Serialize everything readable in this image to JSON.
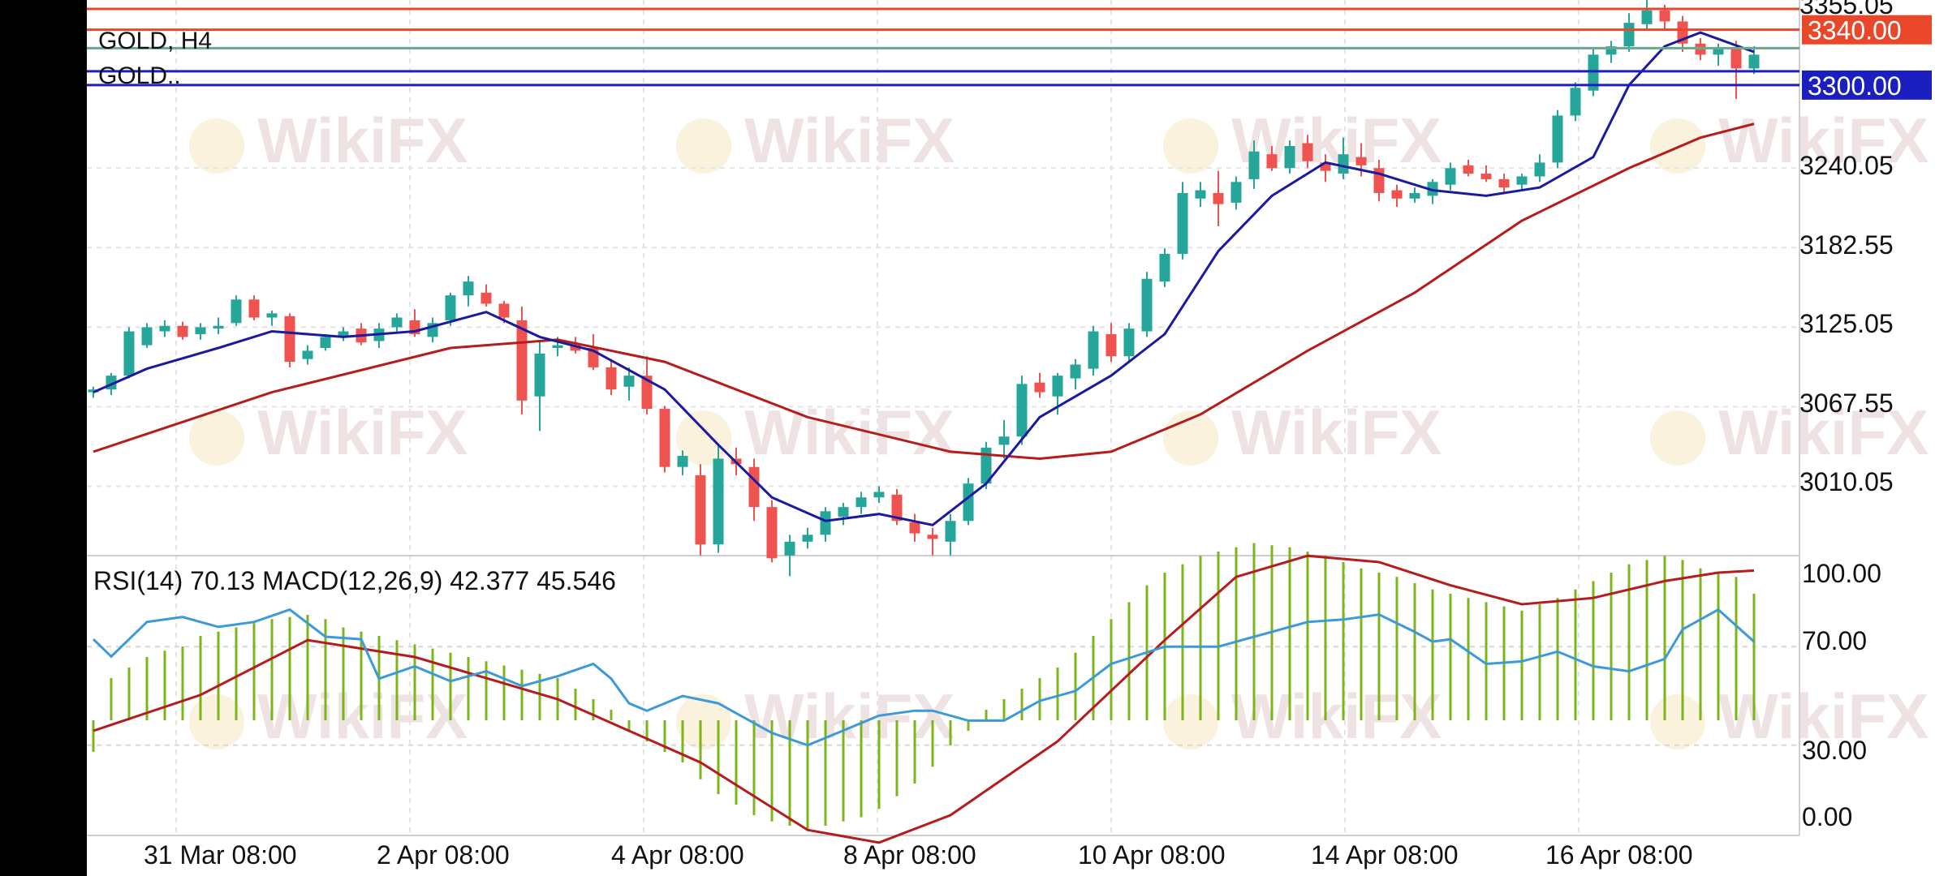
{
  "main_panel": {
    "symbol_label": "GOLD, H4",
    "overlay_label": "GOLD..",
    "price_ticks": [
      "3355.05",
      "3240.05",
      "3182.55",
      "3125.05",
      "3067.55",
      "3010.05"
    ],
    "watermark": "WikiFX"
  },
  "hlines": [
    {
      "value": 3340.0,
      "label": "3340.00",
      "color": "#e8472a",
      "badge": true
    },
    {
      "value": 3300.0,
      "label": "3300.00",
      "color": "#1c1fbf",
      "badge": true
    },
    {
      "value": 3310.0,
      "label": "3310.00",
      "color": "#1c1fbf",
      "badge": false
    },
    {
      "value": 3326.71,
      "label": "3326.71",
      "color": "#6aa88a",
      "badge": false
    },
    {
      "value": 3355.05,
      "label": "",
      "color": "#e8472a",
      "badge": false
    }
  ],
  "indicator_panel": {
    "label": "RSI(14) 70.13 MACD(12,26,9) 42.377 45.546",
    "ticks": [
      "100.00",
      "70.00",
      "30.00",
      "0.00"
    ]
  },
  "x_axis": {
    "labels": [
      "31 Mar 08:00",
      "2 Apr 08:00",
      "4 Apr 08:00",
      "8 Apr 08:00",
      "10 Apr 08:00",
      "14 Apr 08:00",
      "16 Apr 08:00"
    ]
  },
  "colors": {
    "bull": "#26a69a",
    "bear": "#ef5350",
    "ma_fast": "#1a1aa0",
    "ma_slow": "#b71c1c",
    "rsi": "#3d9ad9",
    "macd_hist": "#7cb518",
    "macd_signal": "#b71c1c"
  },
  "chart_data": {
    "type": "candlestick",
    "symbol": "GOLD",
    "timeframe": "H4",
    "y_range": [
      2955,
      3360
    ],
    "candles_ohlc": [
      [
        3078,
        3082,
        3074,
        3080
      ],
      [
        3080,
        3092,
        3076,
        3090
      ],
      [
        3090,
        3125,
        3088,
        3122
      ],
      [
        3112,
        3128,
        3110,
        3125
      ],
      [
        3122,
        3130,
        3118,
        3126
      ],
      [
        3126,
        3129,
        3116,
        3118
      ],
      [
        3120,
        3128,
        3116,
        3125
      ],
      [
        3124,
        3132,
        3120,
        3126
      ],
      [
        3128,
        3148,
        3126,
        3145
      ],
      [
        3145,
        3148,
        3130,
        3132
      ],
      [
        3132,
        3137,
        3126,
        3135
      ],
      [
        3133,
        3135,
        3096,
        3100
      ],
      [
        3102,
        3112,
        3098,
        3108
      ],
      [
        3110,
        3120,
        3108,
        3118
      ],
      [
        3118,
        3125,
        3115,
        3122
      ],
      [
        3124,
        3128,
        3112,
        3114
      ],
      [
        3115,
        3128,
        3110,
        3124
      ],
      [
        3125,
        3135,
        3122,
        3132
      ],
      [
        3130,
        3138,
        3118,
        3120
      ],
      [
        3118,
        3132,
        3114,
        3128
      ],
      [
        3130,
        3150,
        3126,
        3148
      ],
      [
        3148,
        3162,
        3140,
        3158
      ],
      [
        3150,
        3156,
        3140,
        3142
      ],
      [
        3142,
        3144,
        3128,
        3132
      ],
      [
        3130,
        3140,
        3062,
        3072
      ],
      [
        3075,
        3115,
        3050,
        3106
      ],
      [
        3110,
        3118,
        3104,
        3112
      ],
      [
        3112,
        3118,
        3106,
        3108
      ],
      [
        3110,
        3120,
        3094,
        3096
      ],
      [
        3096,
        3102,
        3076,
        3080
      ],
      [
        3082,
        3096,
        3072,
        3090
      ],
      [
        3090,
        3104,
        3062,
        3066
      ],
      [
        3066,
        3068,
        3020,
        3024
      ],
      [
        3024,
        3036,
        3018,
        3032
      ],
      [
        3018,
        3026,
        2960,
        2968
      ],
      [
        2968,
        3040,
        2962,
        3030
      ],
      [
        3030,
        3038,
        3018,
        3026
      ],
      [
        3024,
        3030,
        2985,
        2995
      ],
      [
        2995,
        3000,
        2955,
        2958
      ],
      [
        2960,
        2975,
        2945,
        2970
      ],
      [
        2970,
        2980,
        2965,
        2975
      ],
      [
        2975,
        2995,
        2970,
        2992
      ],
      [
        2988,
        2998,
        2982,
        2995
      ],
      [
        2995,
        3006,
        2990,
        3002
      ],
      [
        3002,
        3010,
        2998,
        3006
      ],
      [
        3004,
        3008,
        2982,
        2985
      ],
      [
        2984,
        2990,
        2970,
        2976
      ],
      [
        2975,
        2980,
        2960,
        2972
      ],
      [
        2970,
        2990,
        2960,
        2985
      ],
      [
        2985,
        3016,
        2982,
        3012
      ],
      [
        3012,
        3042,
        3008,
        3038
      ],
      [
        3040,
        3058,
        3030,
        3046
      ],
      [
        3046,
        3090,
        3040,
        3084
      ],
      [
        3085,
        3092,
        3074,
        3078
      ],
      [
        3075,
        3092,
        3062,
        3090
      ],
      [
        3088,
        3102,
        3080,
        3098
      ],
      [
        3095,
        3126,
        3090,
        3122
      ],
      [
        3120,
        3128,
        3100,
        3104
      ],
      [
        3104,
        3128,
        3100,
        3124
      ],
      [
        3122,
        3165,
        3118,
        3160
      ],
      [
        3158,
        3182,
        3154,
        3178
      ],
      [
        3178,
        3230,
        3174,
        3222
      ],
      [
        3218,
        3230,
        3212,
        3224
      ],
      [
        3222,
        3238,
        3198,
        3214
      ],
      [
        3215,
        3234,
        3210,
        3230
      ],
      [
        3232,
        3260,
        3225,
        3252
      ],
      [
        3250,
        3256,
        3238,
        3240
      ],
      [
        3240,
        3260,
        3236,
        3256
      ],
      [
        3258,
        3264,
        3240,
        3245
      ],
      [
        3244,
        3250,
        3230,
        3238
      ],
      [
        3236,
        3262,
        3232,
        3250
      ],
      [
        3248,
        3258,
        3234,
        3242
      ],
      [
        3240,
        3246,
        3216,
        3222
      ],
      [
        3224,
        3228,
        3212,
        3218
      ],
      [
        3218,
        3226,
        3215,
        3222
      ],
      [
        3220,
        3232,
        3214,
        3230
      ],
      [
        3228,
        3244,
        3224,
        3240
      ],
      [
        3242,
        3246,
        3234,
        3236
      ],
      [
        3236,
        3242,
        3230,
        3232
      ],
      [
        3232,
        3236,
        3222,
        3226
      ],
      [
        3228,
        3236,
        3224,
        3234
      ],
      [
        3234,
        3250,
        3230,
        3244
      ],
      [
        3244,
        3282,
        3240,
        3278
      ],
      [
        3278,
        3302,
        3274,
        3298
      ],
      [
        3296,
        3326,
        3292,
        3322
      ],
      [
        3322,
        3332,
        3316,
        3328
      ],
      [
        3328,
        3352,
        3324,
        3345
      ],
      [
        3344,
        3362,
        3340,
        3354
      ],
      [
        3354,
        3358,
        3340,
        3346
      ],
      [
        3346,
        3350,
        3324,
        3330
      ],
      [
        3330,
        3334,
        3318,
        3322
      ],
      [
        3322,
        3330,
        3314,
        3326
      ],
      [
        3326,
        3332,
        3290,
        3312
      ],
      [
        3312,
        3328,
        3308,
        3322
      ]
    ],
    "ma_fast": [
      [
        0,
        3078
      ],
      [
        3,
        3095
      ],
      [
        7,
        3110
      ],
      [
        10,
        3122
      ],
      [
        14,
        3118
      ],
      [
        18,
        3122
      ],
      [
        22,
        3136
      ],
      [
        25,
        3118
      ],
      [
        28,
        3108
      ],
      [
        32,
        3080
      ],
      [
        35,
        3040
      ],
      [
        38,
        3002
      ],
      [
        41,
        2985
      ],
      [
        44,
        2990
      ],
      [
        47,
        2982
      ],
      [
        50,
        3012
      ],
      [
        53,
        3060
      ],
      [
        57,
        3090
      ],
      [
        60,
        3120
      ],
      [
        63,
        3180
      ],
      [
        66,
        3220
      ],
      [
        69,
        3244
      ],
      [
        72,
        3236
      ],
      [
        75,
        3224
      ],
      [
        78,
        3220
      ],
      [
        81,
        3226
      ],
      [
        84,
        3248
      ],
      [
        86,
        3300
      ],
      [
        88,
        3328
      ],
      [
        90,
        3338
      ],
      [
        93,
        3324
      ]
    ],
    "ma_slow": [
      [
        0,
        3035
      ],
      [
        10,
        3078
      ],
      [
        20,
        3110
      ],
      [
        26,
        3116
      ],
      [
        32,
        3100
      ],
      [
        40,
        3060
      ],
      [
        48,
        3035
      ],
      [
        53,
        3030
      ],
      [
        57,
        3035
      ],
      [
        62,
        3062
      ],
      [
        68,
        3108
      ],
      [
        74,
        3150
      ],
      [
        80,
        3202
      ],
      [
        86,
        3240
      ],
      [
        90,
        3262
      ],
      [
        93,
        3272
      ]
    ],
    "rsi": [
      [
        0,
        73
      ],
      [
        1,
        66
      ],
      [
        3,
        80
      ],
      [
        5,
        82
      ],
      [
        7,
        78
      ],
      [
        9,
        80
      ],
      [
        11,
        85
      ],
      [
        13,
        74
      ],
      [
        15,
        73
      ],
      [
        16,
        57
      ],
      [
        18,
        62
      ],
      [
        20,
        56
      ],
      [
        22,
        60
      ],
      [
        24,
        54
      ],
      [
        26,
        58
      ],
      [
        28,
        63
      ],
      [
        29,
        57
      ],
      [
        30,
        47
      ],
      [
        31,
        44
      ],
      [
        33,
        50
      ],
      [
        35,
        47
      ],
      [
        36,
        43
      ],
      [
        38,
        35
      ],
      [
        40,
        30
      ],
      [
        41,
        33
      ],
      [
        42,
        36
      ],
      [
        44,
        42
      ],
      [
        46,
        44
      ],
      [
        47,
        44
      ],
      [
        49,
        40
      ],
      [
        51,
        40
      ],
      [
        53,
        48
      ],
      [
        55,
        52
      ],
      [
        57,
        63
      ],
      [
        60,
        70
      ],
      [
        63,
        70
      ],
      [
        66,
        76
      ],
      [
        68,
        80
      ],
      [
        70,
        81
      ],
      [
        72,
        83
      ],
      [
        74,
        76
      ],
      [
        75,
        72
      ],
      [
        76,
        73
      ],
      [
        78,
        63
      ],
      [
        80,
        64
      ],
      [
        82,
        68
      ],
      [
        84,
        62
      ],
      [
        86,
        60
      ],
      [
        88,
        65
      ],
      [
        89,
        77
      ],
      [
        91,
        85
      ],
      [
        93,
        72
      ]
    ],
    "macd_hist": [
      -15,
      20,
      25,
      30,
      33,
      35,
      40,
      42,
      44,
      46,
      48,
      49,
      50,
      48,
      44,
      42,
      40,
      38,
      36,
      34,
      32,
      30,
      28,
      26,
      24,
      22,
      20,
      15,
      10,
      5,
      -5,
      -10,
      -15,
      -20,
      -28,
      -35,
      -40,
      -45,
      -48,
      -50,
      -52,
      -50,
      -48,
      -46,
      -42,
      -36,
      -30,
      -22,
      -12,
      -5,
      5,
      10,
      15,
      20,
      25,
      32,
      40,
      48,
      56,
      64,
      70,
      74,
      78,
      80,
      82,
      84,
      83,
      82,
      80,
      78,
      75,
      72,
      70,
      68,
      65,
      62,
      60,
      58,
      56,
      54,
      52,
      55,
      58,
      62,
      66,
      70,
      74,
      76,
      78,
      76,
      72,
      70,
      68,
      60
    ],
    "macd_signal": [
      [
        0,
        -5
      ],
      [
        6,
        12
      ],
      [
        12,
        38
      ],
      [
        18,
        30
      ],
      [
        26,
        10
      ],
      [
        34,
        -20
      ],
      [
        40,
        -52
      ],
      [
        44,
        -58
      ],
      [
        48,
        -45
      ],
      [
        54,
        -10
      ],
      [
        60,
        38
      ],
      [
        64,
        68
      ],
      [
        68,
        78
      ],
      [
        72,
        75
      ],
      [
        76,
        64
      ],
      [
        80,
        55
      ],
      [
        84,
        58
      ],
      [
        88,
        66
      ],
      [
        91,
        70
      ],
      [
        93,
        71
      ]
    ]
  }
}
